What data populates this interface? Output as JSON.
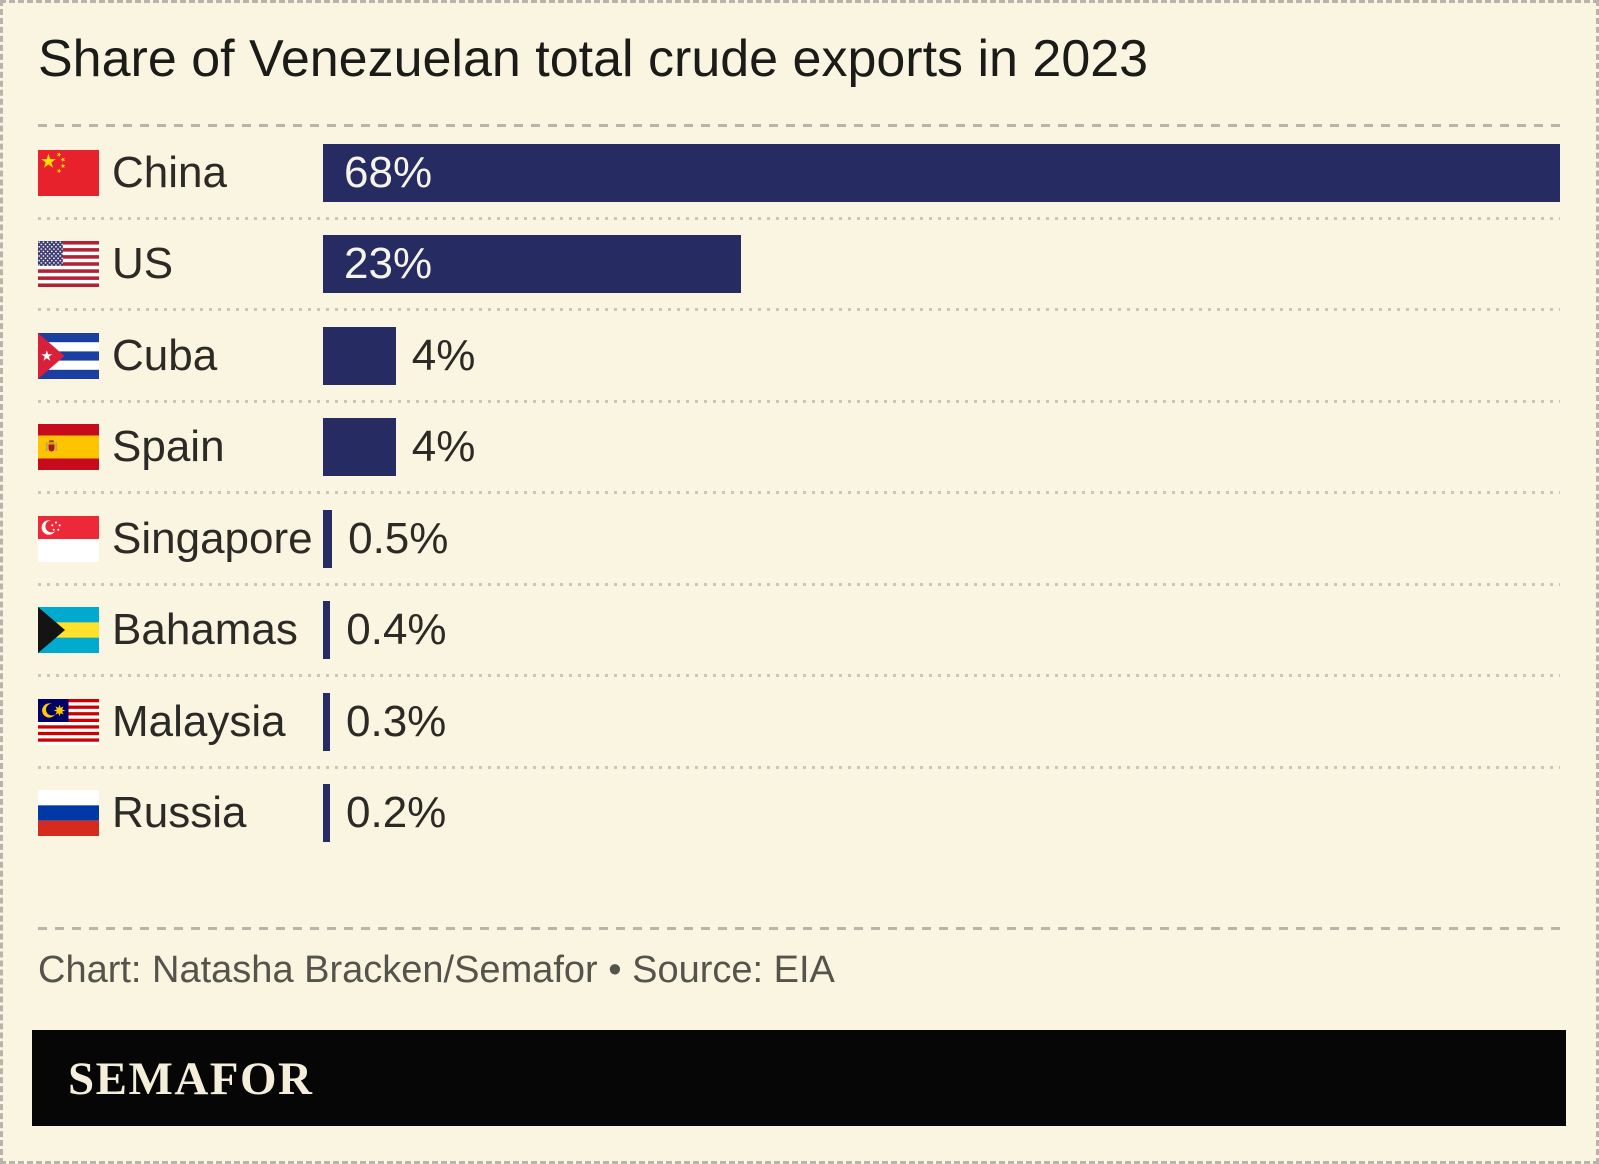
{
  "title": "Share of Venezuelan total crude exports in 2023",
  "credit": "Chart: Natasha Bracken/Semafor • Source: EIA",
  "logo_text": "SEMAFOR",
  "colors": {
    "background": "#faf5e1",
    "bar": "#262b62",
    "title_text": "#1b1b18",
    "label_text": "#2b2a25",
    "value_inside_text": "#f6f3e7",
    "credit_text": "#55544c",
    "banner_background": "#060606",
    "banner_text": "#f4eeda",
    "dashed_rule": "#b7b4a9",
    "dotted_rule": "#c9c6ba"
  },
  "chart_data": {
    "type": "bar",
    "orientation": "horizontal",
    "title": "Share of Venezuelan total crude exports in 2023",
    "xlabel": "",
    "ylabel": "",
    "xlim": [
      0,
      68
    ],
    "grid": false,
    "legend": "none",
    "categories": [
      "China",
      "US",
      "Cuba",
      "Spain",
      "Singapore",
      "Bahamas",
      "Malaysia",
      "Russia"
    ],
    "values": [
      68,
      23,
      4,
      4,
      0.5,
      0.4,
      0.3,
      0.2
    ],
    "value_labels": [
      "68%",
      "23%",
      "4%",
      "4%",
      "0.5%",
      "0.4%",
      "0.3%",
      "0.2%"
    ],
    "rows": [
      {
        "key": "china",
        "country": "China",
        "flag": "china",
        "value": 68,
        "label": "68%",
        "label_inside": true
      },
      {
        "key": "us",
        "country": "US",
        "flag": "us",
        "value": 23,
        "label": "23%",
        "label_inside": true
      },
      {
        "key": "cuba",
        "country": "Cuba",
        "flag": "cuba",
        "value": 4,
        "label": "4%",
        "label_inside": false
      },
      {
        "key": "spain",
        "country": "Spain",
        "flag": "spain",
        "value": 4,
        "label": "4%",
        "label_inside": false
      },
      {
        "key": "singapore",
        "country": "Singapore",
        "flag": "singapore",
        "value": 0.5,
        "label": "0.5%",
        "label_inside": false
      },
      {
        "key": "bahamas",
        "country": "Bahamas",
        "flag": "bahamas",
        "value": 0.4,
        "label": "0.4%",
        "label_inside": false
      },
      {
        "key": "malaysia",
        "country": "Malaysia",
        "flag": "malaysia",
        "value": 0.3,
        "label": "0.3%",
        "label_inside": false
      },
      {
        "key": "russia",
        "country": "Russia",
        "flag": "russia",
        "value": 0.2,
        "label": "0.2%",
        "label_inside": false
      }
    ]
  }
}
